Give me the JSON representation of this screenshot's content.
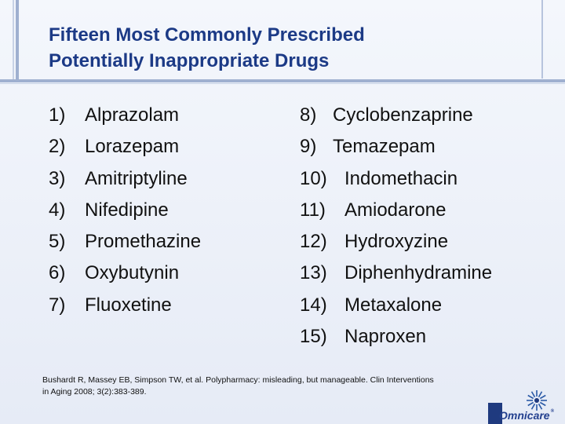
{
  "title": {
    "line1": "Fifteen Most Commonly Prescribed",
    "line2": "Potentially Inappropriate Drugs"
  },
  "drugs_left": [
    {
      "num": "1)",
      "name": "Alprazolam"
    },
    {
      "num": "2)",
      "name": "Lorazepam"
    },
    {
      "num": "3)",
      "name": "Amitriptyline"
    },
    {
      "num": "4)",
      "name": "Nifedipine"
    },
    {
      "num": "5)",
      "name": "Promethazine"
    },
    {
      "num": "6)",
      "name": "Oxybutynin"
    },
    {
      "num": "7)",
      "name": "Fluoxetine"
    }
  ],
  "drugs_right": [
    {
      "num": "8)",
      "name": "Cyclobenzaprine"
    },
    {
      "num": "9)",
      "name": "Temazepam"
    },
    {
      "num": "10)",
      "name": "Indomethacin"
    },
    {
      "num": "11)",
      "name": "Amiodarone"
    },
    {
      "num": "12)",
      "name": "Hydroxyzine"
    },
    {
      "num": "13)",
      "name": "Diphenhydramine"
    },
    {
      "num": "14)",
      "name": "Metaxalone"
    },
    {
      "num": "15)",
      "name": "Naproxen"
    }
  ],
  "citation": {
    "line1": "Bushardt R, Massey EB, Simpson TW, et al. Polypharmacy: misleading, but manageable.  Clin Interventions",
    "line2": "in Aging 2008; 3(2):383-389."
  },
  "logo": {
    "text": "Omnicare",
    "mark": "®",
    "color": "#23408f"
  },
  "colors": {
    "title": "#1c3a86",
    "accent": "#9fb0d0"
  }
}
